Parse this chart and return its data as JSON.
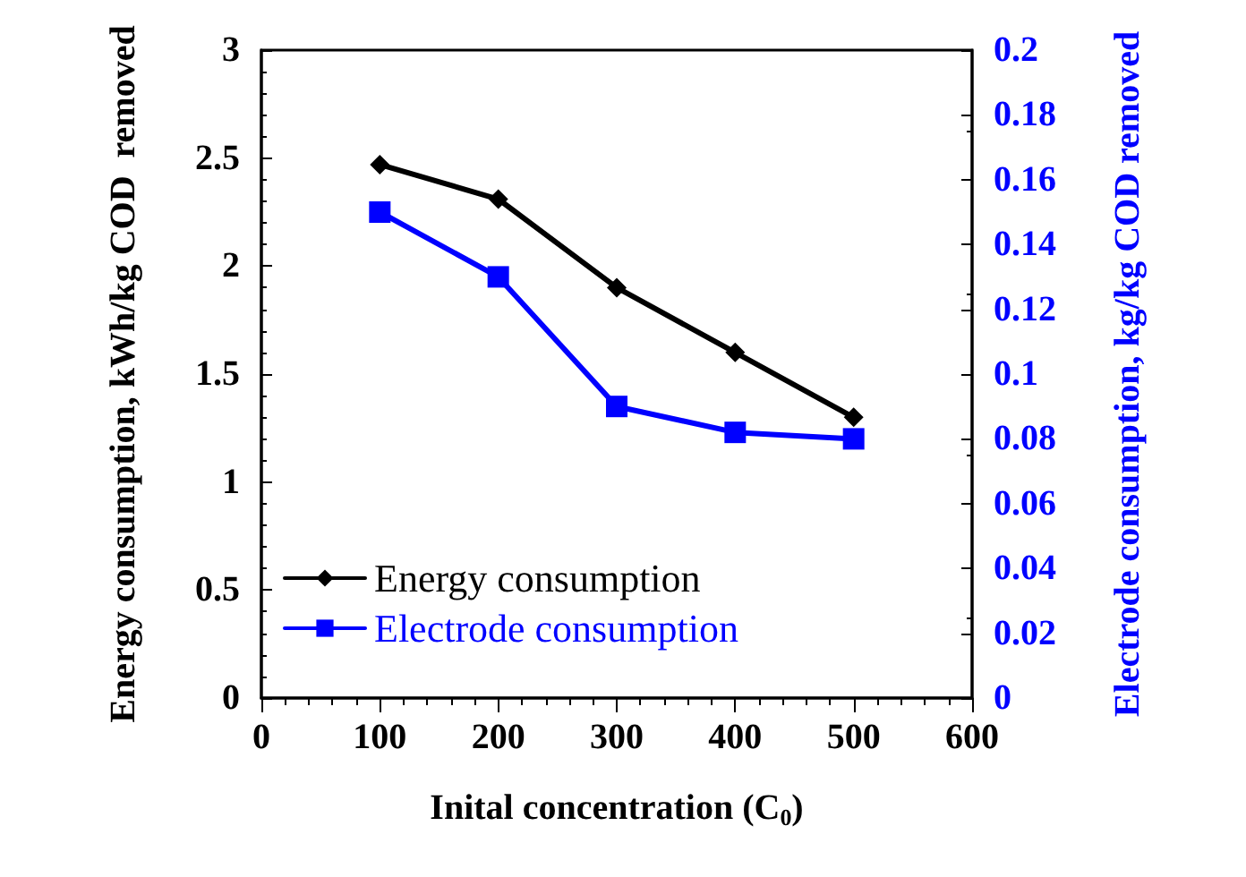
{
  "chart_data": {
    "type": "line",
    "xlabel": "Inital concentration (C$_{0}$)",
    "ylabel": "Energy consumption, kWh/kg COD  removed",
    "y2label": "Electrode consumption, kg/kg COD removed",
    "x": [
      100,
      200,
      300,
      400,
      500
    ],
    "series": [
      {
        "name": "Energy consumption",
        "color": "#000000",
        "marker": "diamond",
        "values": [
          2.47,
          2.31,
          1.9,
          1.6,
          1.3
        ]
      },
      {
        "name": "Electrode consumption",
        "color": "#0000ff",
        "marker": "square",
        "axis": "y2",
        "values": [
          0.15,
          0.13,
          0.09,
          0.082,
          0.08
        ]
      }
    ],
    "xlim": [
      0,
      600
    ],
    "xticks": [
      0,
      100,
      200,
      300,
      400,
      500,
      600
    ],
    "ylim": [
      0,
      3
    ],
    "yticks": [
      0,
      0.5,
      1,
      1.5,
      2,
      2.5,
      3
    ],
    "y2lim": [
      0,
      0.2
    ],
    "y2ticks": [
      0,
      0.02,
      0.04,
      0.06,
      0.08,
      0.1,
      0.12,
      0.14,
      0.16,
      0.18,
      0.2
    ],
    "legend": "bottom left",
    "line_style": "solid"
  }
}
